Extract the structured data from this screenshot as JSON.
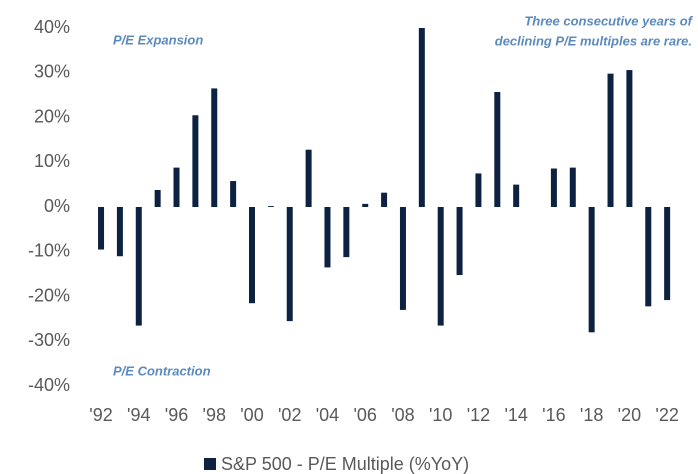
{
  "chart_data": {
    "type": "bar",
    "categories": [
      "'92",
      null,
      "'94",
      null,
      "'96",
      null,
      "'98",
      null,
      "'00",
      null,
      "'02",
      null,
      "'04",
      null,
      "'06",
      null,
      "'08",
      null,
      "'10",
      null,
      "'12",
      null,
      "'14",
      null,
      "'16",
      null,
      "'18",
      null,
      "'20",
      null,
      "'22"
    ],
    "series": [
      {
        "name": "S&P 500 - P/E Multiple (%YoY)",
        "color": "#0d2240",
        "values": [
          -9.5,
          -11,
          -26.5,
          3.8,
          8.8,
          20.5,
          26.5,
          5.8,
          -21.5,
          0.2,
          -25.5,
          12.8,
          -13.5,
          -11.2,
          0.7,
          3.2,
          -23,
          40,
          -26.5,
          -15.2,
          7.5,
          25.7,
          5,
          0,
          8.6,
          8.8,
          -28,
          29.8,
          30.6,
          -22.2,
          -20.8
        ]
      }
    ],
    "ylim": [
      -40,
      40
    ],
    "yticks": [
      {
        "value": 40,
        "label": "40%"
      },
      {
        "value": 30,
        "label": "30%"
      },
      {
        "value": 20,
        "label": "20%"
      },
      {
        "value": 10,
        "label": "10%"
      },
      {
        "value": 0,
        "label": "0%"
      },
      {
        "value": -10,
        "label": "-10%"
      },
      {
        "value": -20,
        "label": "-20%"
      },
      {
        "value": -30,
        "label": "-30%"
      },
      {
        "value": -40,
        "label": "-40%"
      }
    ],
    "annotations": [
      "P/E Expansion",
      "P/E Contraction",
      "Three consecutive years of",
      "declining P/E multiples are rare."
    ],
    "legend": "bottom"
  }
}
